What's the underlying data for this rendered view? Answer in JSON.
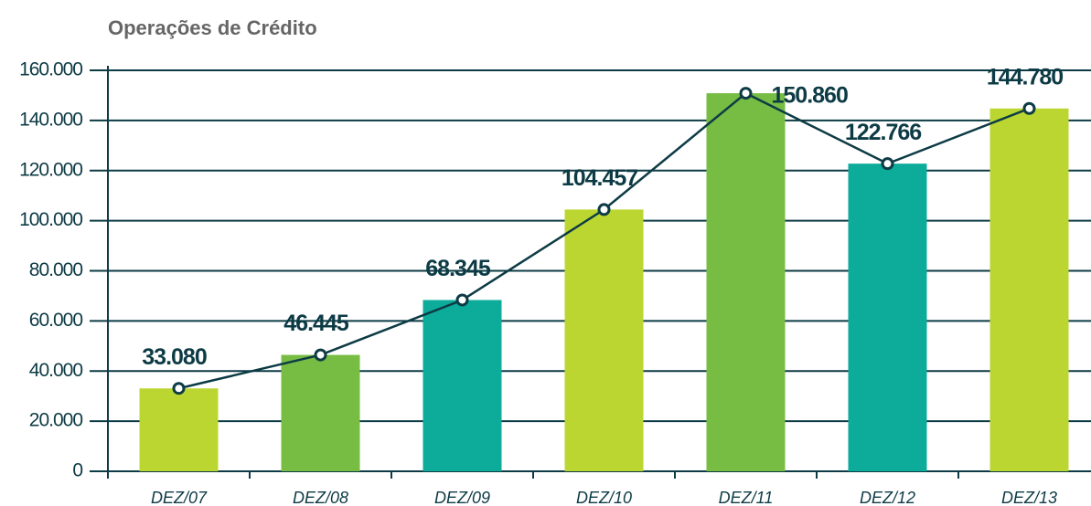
{
  "chart_data": {
    "type": "bar",
    "title": "Operações de Crédito",
    "categories": [
      "DEZ/07",
      "DEZ/08",
      "DEZ/09",
      "DEZ/10",
      "DEZ/11",
      "DEZ/12",
      "DEZ/13"
    ],
    "values": [
      33080,
      46445,
      68345,
      104457,
      150860,
      122766,
      144780
    ],
    "value_labels": [
      "33.080",
      "46.445",
      "68.345",
      "104.457",
      "150.860",
      "122.766",
      "144.780"
    ],
    "colors": [
      "#bcd631",
      "#77bc43",
      "#0cab9a",
      "#bcd631",
      "#77bc43",
      "#0cab9a",
      "#bcd631"
    ],
    "line_color": "#0d3b45",
    "ylim": [
      0,
      160000
    ],
    "yticks": [
      {
        "value": 0,
        "label": "0"
      },
      {
        "value": 20000,
        "label": "20.000"
      },
      {
        "value": 40000,
        "label": "40.000"
      },
      {
        "value": 60000,
        "label": "60.000"
      },
      {
        "value": 80000,
        "label": "80.000"
      },
      {
        "value": 100000,
        "label": "100.000"
      },
      {
        "value": 120000,
        "label": "120.000"
      },
      {
        "value": 140000,
        "label": "140.000"
      },
      {
        "value": 160000,
        "label": "160.000"
      }
    ],
    "grid": true
  }
}
